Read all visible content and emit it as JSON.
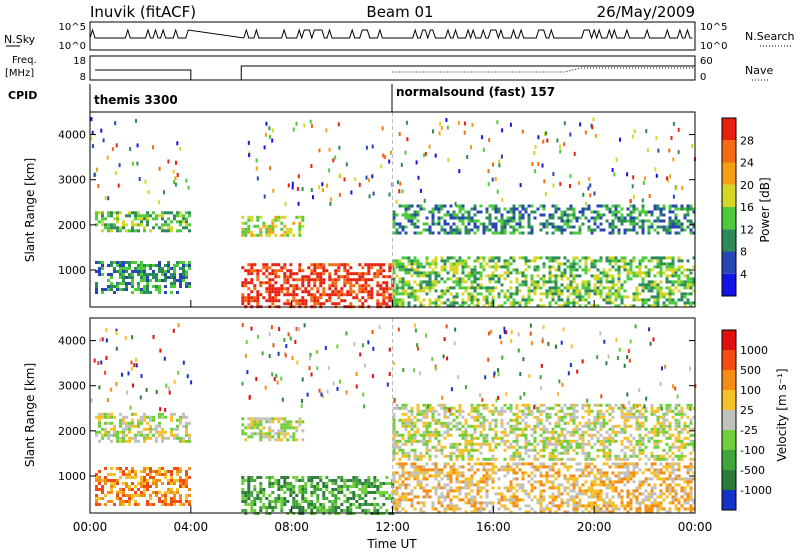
{
  "header": {
    "station": "Inuvik (fitACF)",
    "beam": "Beam 01",
    "date": "26/May/2009"
  },
  "top_panels": {
    "nsky_label": "N.Sky",
    "nsky_ticks": [
      "10^5",
      "10^0"
    ],
    "nsearch_label": "N.Search",
    "nsearch_ticks": [
      "10^5",
      "10^0"
    ],
    "freq_label_1": "Freq.",
    "freq_label_2": "[MHz]",
    "freq_ticks": [
      "18",
      "8"
    ],
    "nave_label": "Nave",
    "nave_ticks": [
      "60",
      "0"
    ],
    "cpid_label": "CPID",
    "cpid_segments": [
      "themis 3300",
      "normalsound (fast) 157"
    ]
  },
  "chart_data": [
    {
      "type": "heatmap",
      "name": "power",
      "ylabel": "Slant Range [km]",
      "yticks": [
        "4000",
        "3000",
        "2000",
        "1000"
      ],
      "ylim": [
        180,
        4500
      ],
      "xlim": [
        0,
        24
      ],
      "colorbar_label": "Power [dB]",
      "colorbar_ticks": [
        "28",
        "24",
        "20",
        "16",
        "12",
        "8",
        "4"
      ],
      "colors": [
        "#1414e6",
        "#2646b4",
        "#2d8b5a",
        "#4ecb3c",
        "#d6d626",
        "#f5a014",
        "#f56a10",
        "#e82010"
      ],
      "blocks": [
        {
          "t0": 0.2,
          "t1": 4.0,
          "r0": 1850,
          "r1": 2300,
          "level": 3
        },
        {
          "t0": 0.2,
          "t1": 4.0,
          "r0": 500,
          "r1": 1200,
          "level": 2
        },
        {
          "t0": 6.0,
          "t1": 8.4,
          "r0": 1800,
          "r1": 2200,
          "level": 4
        },
        {
          "t0": 6.0,
          "t1": 12.0,
          "r0": 200,
          "r1": 1150,
          "level": 7
        },
        {
          "t0": 12.0,
          "t1": 24.0,
          "r0": 1850,
          "r1": 2450,
          "level": 2
        },
        {
          "t0": 12.0,
          "t1": 24.0,
          "r0": 200,
          "r1": 1300,
          "level": 3
        }
      ]
    },
    {
      "type": "heatmap",
      "name": "velocity",
      "ylabel": "Slant Range [km]",
      "yticks": [
        "4000",
        "3000",
        "2000",
        "1000"
      ],
      "ylim": [
        180,
        4500
      ],
      "xlim": [
        0,
        24
      ],
      "xticks": [
        "00:00",
        "04:00",
        "08:00",
        "12:00",
        "16:00",
        "20:00",
        "00:00"
      ],
      "xlabel": "Time UT",
      "colorbar_label": "Velocity [m s⁻¹]",
      "colorbar_ticks": [
        "1000",
        "500",
        "100",
        "25",
        "-25",
        "-100",
        "-500",
        "-1000"
      ],
      "colors": [
        "#1432c8",
        "#2c7a3c",
        "#3fa63a",
        "#6ecf3a",
        "#c0c0bc",
        "#f5c028",
        "#f58c14",
        "#f24c10",
        "#e01010"
      ],
      "blocks": [
        {
          "t0": 0.2,
          "t1": 4.0,
          "r0": 1800,
          "r1": 2400,
          "level": 4
        },
        {
          "t0": 0.2,
          "t1": 4.0,
          "r0": 400,
          "r1": 1200,
          "level": 6
        },
        {
          "t0": 6.0,
          "t1": 8.4,
          "r0": 1800,
          "r1": 2300,
          "level": 4
        },
        {
          "t0": 6.0,
          "t1": 12.0,
          "r0": 200,
          "r1": 1000,
          "level": 2
        },
        {
          "t0": 12.0,
          "t1": 24.0,
          "r0": 1400,
          "r1": 2600,
          "level": 4
        },
        {
          "t0": 12.0,
          "t1": 24.0,
          "r0": 200,
          "r1": 1300,
          "level": 5
        }
      ]
    }
  ]
}
